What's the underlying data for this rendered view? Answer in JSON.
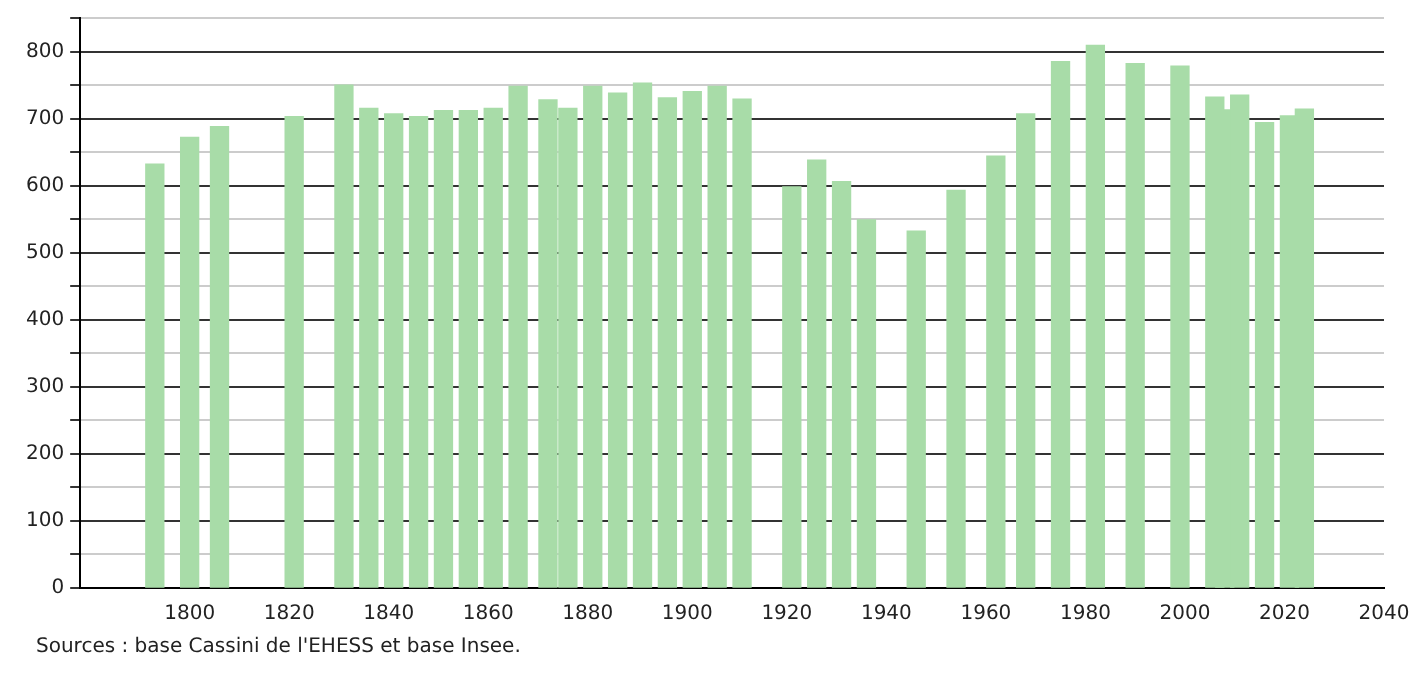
{
  "chart_data": {
    "type": "bar",
    "x": [
      1793,
      1800,
      1806,
      1821,
      1831,
      1836,
      1841,
      1846,
      1851,
      1856,
      1861,
      1866,
      1872,
      1876,
      1881,
      1886,
      1891,
      1896,
      1901,
      1906,
      1911,
      1921,
      1926,
      1931,
      1936,
      1946,
      1954,
      1962,
      1968,
      1975,
      1982,
      1990,
      1999,
      2006,
      2008,
      2011,
      2016,
      2021,
      2024
    ],
    "values": [
      632,
      672,
      688,
      703,
      750,
      715,
      707,
      703,
      712,
      712,
      715,
      748,
      728,
      715,
      748,
      738,
      753,
      731,
      740,
      748,
      729,
      598,
      638,
      606,
      549,
      532,
      593,
      644,
      707,
      785,
      809,
      782,
      778,
      732,
      713,
      735,
      694,
      704,
      714
    ],
    "color": "#a8dca8",
    "xlim": [
      1778,
      2040
    ],
    "xticks": [
      1800,
      1820,
      1840,
      1860,
      1880,
      1900,
      1920,
      1940,
      1960,
      1980,
      2000,
      2020,
      2040
    ],
    "ylim": [
      0,
      850
    ],
    "yticks": [
      0,
      {
        "value": 50,
        "label": null
      },
      100,
      {
        "value": 150,
        "label": null
      },
      200,
      {
        "value": 250,
        "label": null
      },
      300,
      {
        "value": 350,
        "label": null
      },
      400,
      {
        "value": 450,
        "label": null
      },
      500,
      {
        "value": 550,
        "label": null
      },
      600,
      {
        "value": 650,
        "label": null
      },
      700,
      {
        "value": 750,
        "label": null
      },
      800,
      {
        "value": 850,
        "label": null
      }
    ],
    "grid": "y",
    "annotations": [
      "Sources : base Cassini de l'EHESS et base Insee."
    ]
  }
}
